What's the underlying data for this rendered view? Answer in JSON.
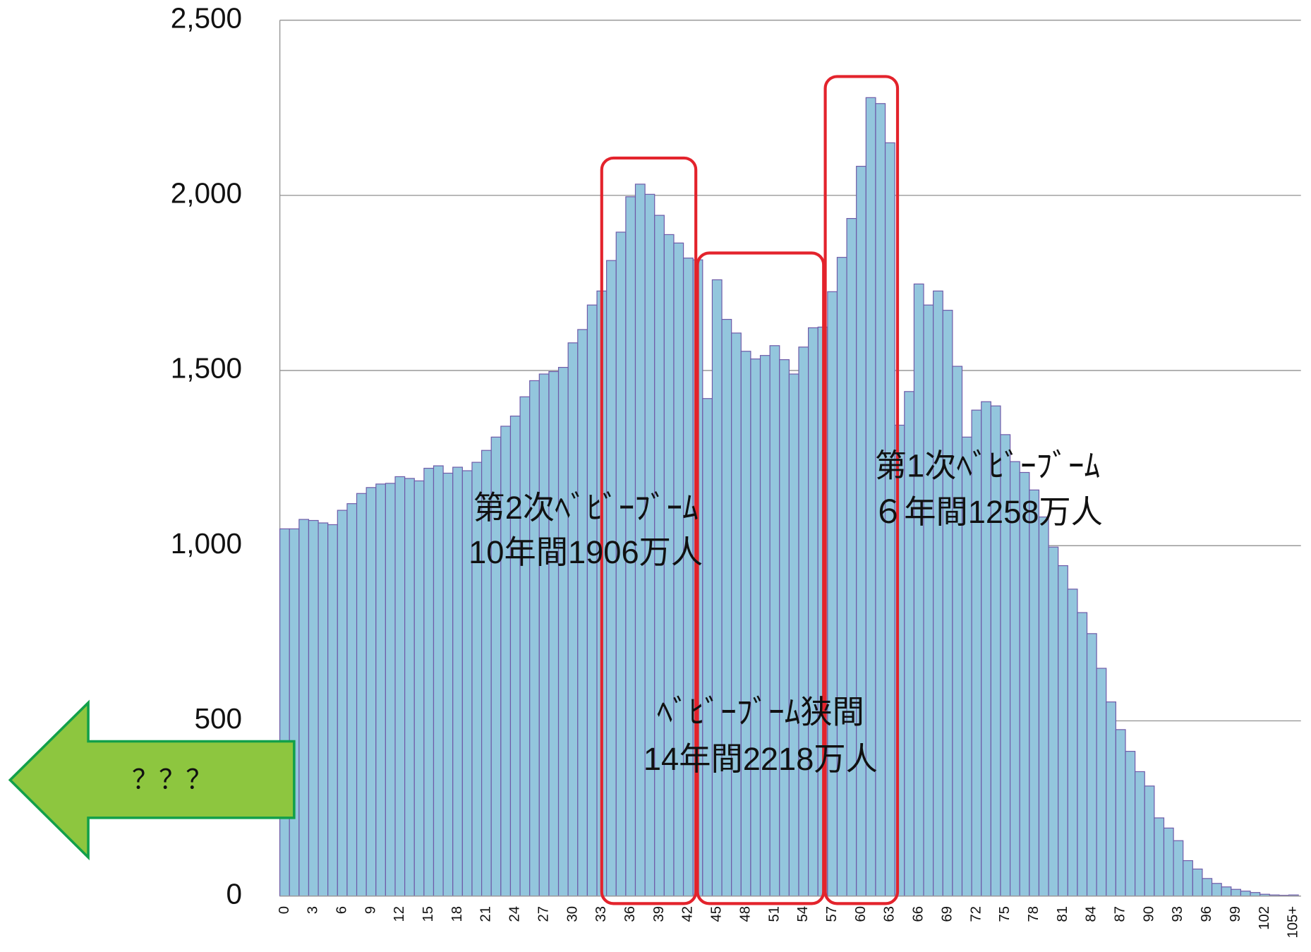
{
  "chart_data": {
    "type": "bar",
    "categories": [
      "0",
      null,
      null,
      "3",
      null,
      null,
      "6",
      null,
      null,
      "9",
      null,
      null,
      "12",
      null,
      null,
      "15",
      null,
      null,
      "18",
      null,
      null,
      "21",
      null,
      null,
      "24",
      null,
      null,
      "27",
      null,
      null,
      "30",
      null,
      null,
      "33",
      null,
      null,
      "36",
      null,
      null,
      "39",
      null,
      null,
      "42",
      null,
      null,
      "45",
      null,
      null,
      "48",
      null,
      null,
      "51",
      null,
      null,
      "54",
      null,
      null,
      "57",
      null,
      null,
      "60",
      null,
      null,
      "63",
      null,
      null,
      "66",
      null,
      null,
      "69",
      null,
      null,
      "72",
      null,
      null,
      "75",
      null,
      null,
      "78",
      null,
      null,
      "81",
      null,
      null,
      "84",
      null,
      null,
      "87",
      null,
      null,
      "90",
      null,
      null,
      "93",
      null,
      null,
      "96",
      null,
      null,
      "99",
      null,
      null,
      "102",
      null,
      null,
      "105+"
    ],
    "values": [
      1048,
      1048,
      1075,
      1072,
      1065,
      1060,
      1101,
      1120,
      1149,
      1166,
      1176,
      1178,
      1197,
      1192,
      1185,
      1221,
      1228,
      1207,
      1224,
      1214,
      1238,
      1272,
      1310,
      1341,
      1370,
      1425,
      1471,
      1490,
      1497,
      1509,
      1579,
      1617,
      1687,
      1727,
      1814,
      1895,
      1996,
      2032,
      2003,
      1943,
      1888,
      1864,
      1821,
      1816,
      1420,
      1759,
      1646,
      1607,
      1555,
      1533,
      1543,
      1571,
      1531,
      1490,
      1567,
      1622,
      1624,
      1725,
      1823,
      1934,
      2083,
      2279,
      2262,
      2150,
      1344,
      1440,
      1747,
      1687,
      1727,
      1672,
      1512,
      1310,
      1387,
      1411,
      1399,
      1317,
      1240,
      1209,
      1159,
      1082,
      996,
      943,
      876,
      809,
      749,
      650,
      554,
      475,
      413,
      355,
      314,
      223,
      194,
      158,
      101,
      77,
      50,
      36,
      26,
      19,
      14,
      10,
      5,
      3,
      2,
      3
    ],
    "color": "#93c6dd",
    "edge_color": "#6e5aa8",
    "ylim": [
      0,
      2500
    ],
    "yticks": [
      0,
      500,
      {
        "value": 1000,
        "label": "1,000"
      },
      {
        "value": 1500,
        "label": "1,500"
      },
      {
        "value": 2000,
        "label": "2,000"
      },
      {
        "value": 2500,
        "label": "2,500"
      }
    ],
    "grid": true,
    "annotations": [
      "第2次ﾍﾞﾋﾞｰﾌﾞｰﾑ",
      "10年間1906万人",
      "ﾍﾞﾋﾞｰﾌﾞｰﾑ狭間",
      "14年間2218万人",
      "第1次ﾍﾞﾋﾞｰﾌﾞｰﾑ",
      "６年間1258万人",
      "？？？"
    ]
  }
}
